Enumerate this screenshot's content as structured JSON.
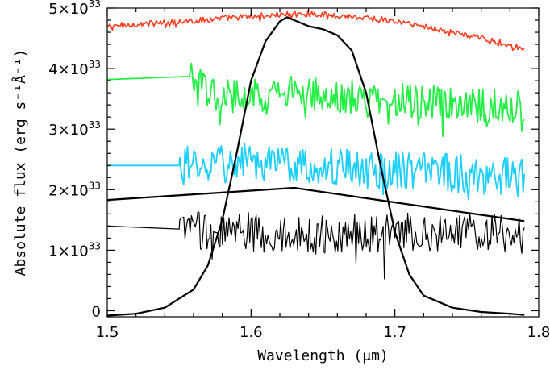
{
  "chart_data": {
    "type": "line",
    "title": "",
    "xlabel": "Wavelength (μm)",
    "ylabel": "Absolute flux (erg s⁻¹Å⁻¹)",
    "xlim": [
      1.5,
      1.8
    ],
    "ylim": [
      -0.1,
      5.0
    ],
    "y_scale_label": "×10³³",
    "x_ticks": [
      1.5,
      1.6,
      1.7,
      1.8
    ],
    "x_tick_labels": [
      "1.5",
      "1.6",
      "1.7",
      "1.8"
    ],
    "y_ticks": [
      0,
      1,
      2,
      3,
      4,
      5
    ],
    "y_tick_labels": [
      {
        "mantissa": "0",
        "exponent": ""
      },
      {
        "mantissa": "1×10",
        "exponent": "33"
      },
      {
        "mantissa": "2×10",
        "exponent": "33"
      },
      {
        "mantissa": "3×10",
        "exponent": "33"
      },
      {
        "mantissa": "4×10",
        "exponent": "33"
      },
      {
        "mantissa": "5×10",
        "exponent": "33"
      }
    ],
    "grid": false,
    "legend": "none",
    "series": [
      {
        "color": "#ff3b1f",
        "stroke_width": 1.6,
        "noise_amplitude": 0.05,
        "x": [
          1.5,
          1.52,
          1.54,
          1.56,
          1.58,
          1.6,
          1.62,
          1.64,
          1.66,
          1.68,
          1.7,
          1.72,
          1.74,
          1.76,
          1.78,
          1.79
        ],
        "y": [
          4.7,
          4.73,
          4.76,
          4.79,
          4.83,
          4.86,
          4.89,
          4.91,
          4.88,
          4.84,
          4.78,
          4.7,
          4.6,
          4.5,
          4.4,
          4.31
        ]
      },
      {
        "color": "#22ee44",
        "stroke_width": 1.8,
        "noise_amplitude": 0.28,
        "x": [
          1.5,
          1.557,
          1.57,
          1.6,
          1.63,
          1.66,
          1.69,
          1.72,
          1.75,
          1.79
        ],
        "y": [
          3.82,
          3.87,
          3.6,
          3.55,
          3.6,
          3.55,
          3.5,
          3.45,
          3.4,
          3.38
        ]
      },
      {
        "color": "#1ccfff",
        "stroke_width": 1.8,
        "noise_amplitude": 0.32,
        "x": [
          1.5,
          1.55,
          1.6,
          1.64,
          1.68,
          1.72,
          1.76,
          1.79
        ],
        "y": [
          2.4,
          2.4,
          2.45,
          2.4,
          2.35,
          2.3,
          2.25,
          2.2
        ]
      },
      {
        "color": "#000000",
        "stroke_width": 1.2,
        "noise_amplitude": 0.32,
        "x": [
          1.5,
          1.55,
          1.6,
          1.65,
          1.7,
          1.75,
          1.79
        ],
        "y": [
          1.4,
          1.35,
          1.3,
          1.25,
          1.3,
          1.3,
          1.25
        ]
      },
      {
        "color": "#000000",
        "stroke_width": 2.2,
        "noise_amplitude": 0,
        "x": [
          1.5,
          1.63,
          1.79
        ],
        "y": [
          1.83,
          2.03,
          1.48
        ]
      },
      {
        "color": "#000000",
        "stroke_width": 2.2,
        "noise_amplitude": 0,
        "x": [
          1.5,
          1.52,
          1.54,
          1.56,
          1.57,
          1.58,
          1.59,
          1.6,
          1.61,
          1.62,
          1.625,
          1.63,
          1.64,
          1.65,
          1.66,
          1.67,
          1.68,
          1.69,
          1.7,
          1.71,
          1.72,
          1.74,
          1.76,
          1.78,
          1.79
        ],
        "y": [
          -0.08,
          -0.05,
          0.05,
          0.35,
          0.75,
          1.5,
          2.6,
          3.8,
          4.45,
          4.78,
          4.85,
          4.8,
          4.7,
          4.65,
          4.55,
          4.3,
          3.6,
          2.4,
          1.3,
          0.6,
          0.25,
          0.05,
          -0.02,
          -0.05,
          -0.07
        ]
      }
    ]
  }
}
